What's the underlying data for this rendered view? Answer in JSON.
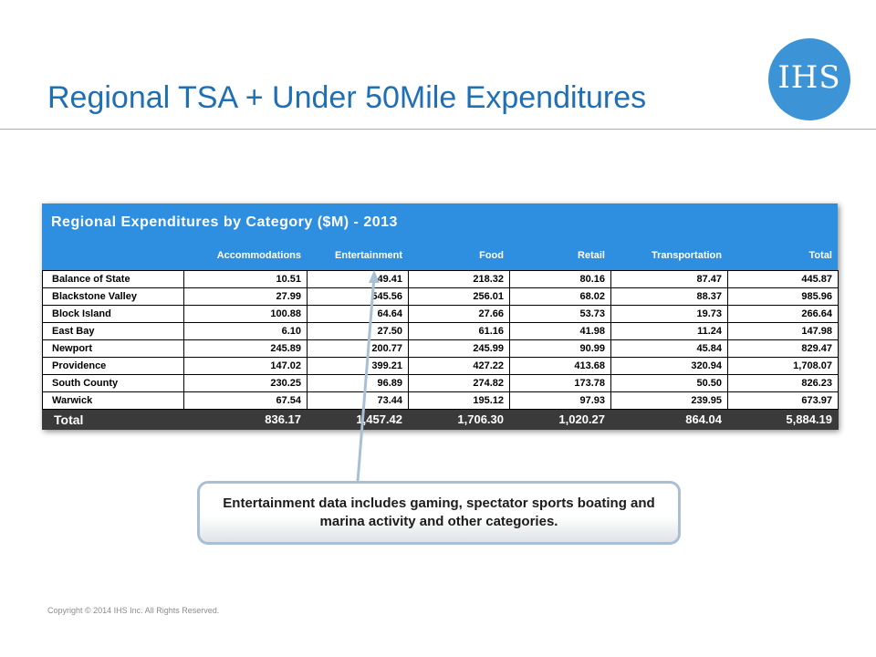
{
  "slide": {
    "title": "Regional TSA + Under 50Mile Expenditures",
    "logo_text": "IHS",
    "copyright": "Copyright © 2014 IHS Inc. All Rights Reserved."
  },
  "table": {
    "caption": "Regional Expenditures by Category ($M) - 2013",
    "columns": [
      "Accommodations",
      "Entertainment",
      "Food",
      "Retail",
      "Transportation",
      "Total"
    ],
    "rows": [
      {
        "name": "Balance of State",
        "values": [
          "10.51",
          "49.41",
          "218.32",
          "80.16",
          "87.47",
          "445.87"
        ]
      },
      {
        "name": "Blackstone Valley",
        "values": [
          "27.99",
          "545.56",
          "256.01",
          "68.02",
          "88.37",
          "985.96"
        ]
      },
      {
        "name": "Block Island",
        "values": [
          "100.88",
          "64.64",
          "27.66",
          "53.73",
          "19.73",
          "266.64"
        ]
      },
      {
        "name": "East Bay",
        "values": [
          "6.10",
          "27.50",
          "61.16",
          "41.98",
          "11.24",
          "147.98"
        ]
      },
      {
        "name": "Newport",
        "values": [
          "245.89",
          "200.77",
          "245.99",
          "90.99",
          "45.84",
          "829.47"
        ]
      },
      {
        "name": "Providence",
        "values": [
          "147.02",
          "399.21",
          "427.22",
          "413.68",
          "320.94",
          "1,708.07"
        ]
      },
      {
        "name": "South County",
        "values": [
          "230.25",
          "96.89",
          "274.82",
          "173.78",
          "50.50",
          "826.23"
        ]
      },
      {
        "name": "Warwick",
        "values": [
          "67.54",
          "73.44",
          "195.12",
          "97.93",
          "239.95",
          "673.97"
        ]
      }
    ],
    "total": {
      "name": "Total",
      "values": [
        "836.17",
        "1,457.42",
        "1,706.30",
        "1,020.27",
        "864.04",
        "5,884.19"
      ]
    }
  },
  "callout": {
    "text": "Entertainment data includes gaming, spectator sports boating and marina activity and other categories."
  },
  "colors": {
    "title": "#1f6fb4",
    "header_blue": "#2e8ee0",
    "total_row": "#3a3a3a",
    "logo": "#3c94d6"
  }
}
